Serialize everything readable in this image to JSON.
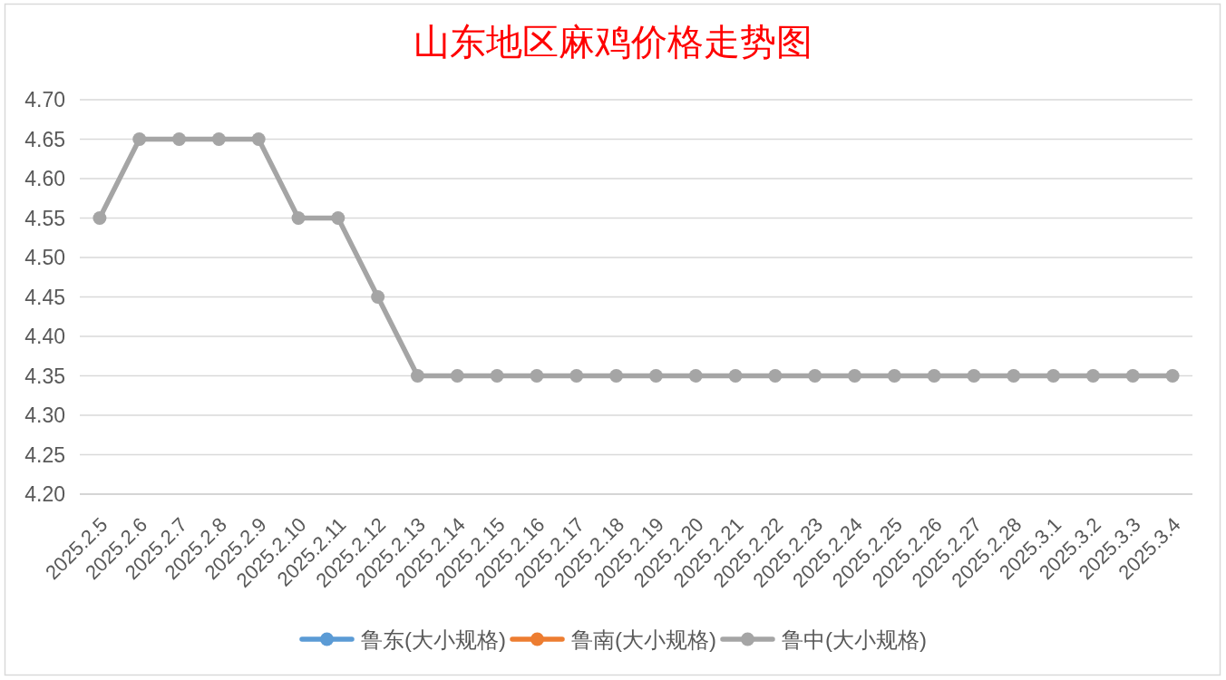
{
  "chart_data": {
    "type": "line",
    "title": "山东地区麻鸡价格走势图",
    "categories": [
      "2025.2.5",
      "2025.2.6",
      "2025.2.7",
      "2025.2.8",
      "2025.2.9",
      "2025.2.10",
      "2025.2.11",
      "2025.2.12",
      "2025.2.13",
      "2025.2.14",
      "2025.2.15",
      "2025.2.16",
      "2025.2.17",
      "2025.2.18",
      "2025.2.19",
      "2025.2.20",
      "2025.2.21",
      "2025.2.22",
      "2025.2.23",
      "2025.2.24",
      "2025.2.25",
      "2025.2.26",
      "2025.2.27",
      "2025.2.28",
      "2025.3.1",
      "2025.3.2",
      "2025.3.3",
      "2025.3.4"
    ],
    "series": [
      {
        "name": "鲁东(大小规格)",
        "color": "#5b9bd5",
        "values": [
          null,
          null,
          null,
          null,
          null,
          null,
          null,
          null,
          null,
          null,
          null,
          null,
          null,
          null,
          null,
          null,
          null,
          null,
          null,
          null,
          null,
          null,
          null,
          null,
          null,
          null,
          null,
          null
        ]
      },
      {
        "name": "鲁南(大小规格)",
        "color": "#ed7d31",
        "values": [
          null,
          null,
          null,
          null,
          null,
          null,
          null,
          null,
          null,
          null,
          null,
          null,
          null,
          null,
          null,
          null,
          null,
          null,
          null,
          null,
          null,
          null,
          null,
          null,
          null,
          null,
          null,
          null
        ]
      },
      {
        "name": "鲁中(大小规格)",
        "color": "#a5a5a5",
        "values": [
          4.55,
          4.65,
          4.65,
          4.65,
          4.65,
          4.55,
          4.55,
          4.45,
          4.35,
          4.35,
          4.35,
          4.35,
          4.35,
          4.35,
          4.35,
          4.35,
          4.35,
          4.35,
          4.35,
          4.35,
          4.35,
          4.35,
          4.35,
          4.35,
          4.35,
          4.35,
          4.35,
          4.35
        ]
      }
    ],
    "ylim": [
      4.2,
      4.7
    ],
    "yticks": [
      {
        "value": 4.2,
        "label": "4.20"
      },
      {
        "value": 4.25,
        "label": "4.25"
      },
      {
        "value": 4.3,
        "label": "4.30"
      },
      {
        "value": 4.35,
        "label": "4.35"
      },
      {
        "value": 4.4,
        "label": "4.40"
      },
      {
        "value": 4.45,
        "label": "4.45"
      },
      {
        "value": 4.5,
        "label": "4.50"
      },
      {
        "value": 4.55,
        "label": "4.55"
      },
      {
        "value": 4.6,
        "label": "4.60"
      },
      {
        "value": 4.65,
        "label": "4.65"
      },
      {
        "value": 4.7,
        "label": "4.70"
      }
    ],
    "grid": "y",
    "legend": "bottom",
    "marker": "circle",
    "line_style": "solid"
  }
}
